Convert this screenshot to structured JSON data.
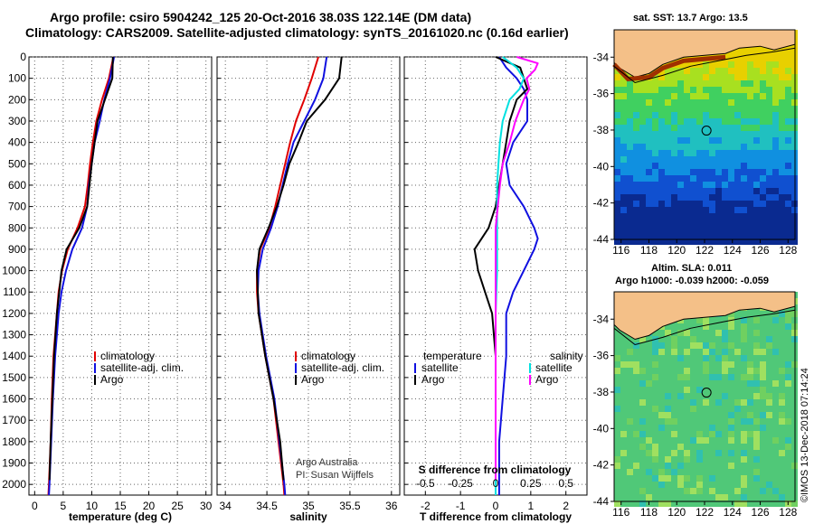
{
  "title_line1": "Argo profile: csiro 5904242_125 20-Oct-2016 38.03S 122.14E (DM data)",
  "title_line2": "Climatology: CARS2009. Satellite-adjusted climatology: synTS_20161020.nc (0.16d earlier)",
  "colors": {
    "climatology": "#e00000",
    "satellite": "#1010e0",
    "argo": "#000000",
    "argo_salinity": "#ff00ff",
    "satellite_salinity": "#00e0e0",
    "land": "#f4c088"
  },
  "chart_data": [
    {
      "type": "line",
      "xlabel": "temperature (deg C)",
      "ylabel": "",
      "xlim": [
        -1,
        31
      ],
      "ylim": [
        2050,
        0
      ],
      "xticks": [
        "0",
        "5",
        "10",
        "15",
        "20",
        "25",
        "30"
      ],
      "yticks": [
        "0",
        "100",
        "200",
        "300",
        "400",
        "500",
        "600",
        "700",
        "800",
        "900",
        "1000",
        "1100",
        "1200",
        "1300",
        "1400",
        "1500",
        "1600",
        "1700",
        "1800",
        "1900",
        "2000"
      ],
      "legend": [
        "climatology",
        "satellite-adj. clim.",
        "Argo"
      ],
      "series": [
        {
          "name": "climatology",
          "depth": [
            0,
            100,
            200,
            300,
            400,
            500,
            600,
            700,
            800,
            900,
            1000,
            1100,
            1200,
            1400,
            1600,
            1800,
            2000,
            2050
          ],
          "values": [
            13.8,
            13.0,
            11.8,
            10.8,
            10.2,
            9.7,
            9.3,
            8.8,
            7.5,
            5.8,
            4.8,
            4.2,
            3.9,
            3.3,
            3.0,
            2.8,
            2.5,
            2.4
          ]
        },
        {
          "name": "satellite-adj. clim.",
          "depth": [
            0,
            100,
            200,
            300,
            400,
            500,
            600,
            700,
            800,
            900,
            1000,
            1100,
            1200,
            1400,
            1600,
            1800,
            2000,
            2050
          ],
          "values": [
            13.9,
            13.2,
            12.2,
            11.4,
            10.5,
            10.0,
            9.5,
            9.2,
            8.3,
            6.6,
            5.5,
            4.7,
            4.2,
            3.6,
            3.2,
            2.9,
            2.6,
            2.5
          ]
        },
        {
          "name": "Argo",
          "depth": [
            0,
            100,
            200,
            300,
            400,
            500,
            600,
            700,
            800,
            900,
            1000,
            1100,
            1200,
            1400,
            1600,
            1800,
            1980
          ],
          "values": [
            13.7,
            13.6,
            12.3,
            11.0,
            10.5,
            10.0,
            9.6,
            9.2,
            7.8,
            5.6,
            4.7,
            4.3,
            3.9,
            3.4,
            3.1,
            2.8,
            2.6
          ]
        }
      ]
    },
    {
      "type": "line",
      "xlabel": "salinity",
      "xlim": [
        33.9,
        36.1
      ],
      "ylim": [
        2050,
        0
      ],
      "xticks": [
        "34",
        "34.5",
        "35",
        "35.5",
        "36"
      ],
      "legend": [
        "climatology",
        "satellite-adj. clim.",
        "Argo"
      ],
      "annotation": [
        "Argo Australia",
        "PI: Susan Wijffels"
      ],
      "series": [
        {
          "name": "climatology",
          "depth": [
            0,
            100,
            200,
            300,
            400,
            500,
            600,
            700,
            800,
            900,
            1000,
            1100,
            1200,
            1400,
            1600,
            1800,
            2000,
            2050
          ],
          "values": [
            35.12,
            35.04,
            34.95,
            34.85,
            34.78,
            34.72,
            34.66,
            34.6,
            34.53,
            34.42,
            34.38,
            34.38,
            34.4,
            34.48,
            34.58,
            34.64,
            34.7,
            34.71
          ]
        },
        {
          "name": "satellite-adj. clim.",
          "depth": [
            0,
            100,
            200,
            300,
            400,
            500,
            600,
            700,
            800,
            900,
            1000,
            1100,
            1200,
            1400,
            1600,
            1800,
            2000,
            2050
          ],
          "values": [
            35.22,
            35.18,
            35.08,
            34.95,
            34.82,
            34.75,
            34.69,
            34.63,
            34.55,
            34.45,
            34.4,
            34.39,
            34.41,
            34.49,
            34.59,
            34.65,
            34.71,
            34.72
          ]
        },
        {
          "name": "Argo",
          "depth": [
            0,
            100,
            200,
            300,
            400,
            500,
            600,
            700,
            800,
            900,
            1000,
            1100,
            1200,
            1400,
            1600,
            1800,
            1980
          ],
          "values": [
            35.4,
            35.37,
            35.2,
            34.98,
            34.88,
            34.77,
            34.7,
            34.62,
            34.52,
            34.41,
            34.38,
            34.39,
            34.4,
            34.48,
            34.58,
            34.66,
            34.7
          ]
        }
      ]
    },
    {
      "type": "line",
      "xlabel": "T difference from climatology",
      "xlabel_top": "S difference from climatology",
      "xlim": [
        -2.6,
        2.6
      ],
      "ylim": [
        2050,
        0
      ],
      "xticks": [
        "-2",
        "-1",
        "0",
        "1",
        "2"
      ],
      "xticks_top": [
        "-0.5",
        "-0.25",
        "0",
        "0.25",
        "0.5"
      ],
      "legend_left": [
        "temperature",
        "satellite",
        "Argo"
      ],
      "legend_right": [
        "salinity",
        "satellite",
        "Argo"
      ],
      "series": [
        {
          "name": "temperature satellite",
          "depth": [
            0,
            50,
            100,
            150,
            200,
            300,
            400,
            500,
            600,
            700,
            800,
            850,
            900,
            1000,
            1100,
            1200,
            1400,
            1600,
            1800,
            2000,
            2050
          ],
          "values": [
            0.1,
            0.3,
            0.6,
            0.8,
            0.9,
            0.9,
            0.5,
            0.3,
            0.4,
            0.8,
            1.1,
            1.2,
            1.1,
            0.8,
            0.5,
            0.3,
            0.3,
            0.2,
            0.1,
            0.1,
            0.1
          ]
        },
        {
          "name": "temperature Argo",
          "depth": [
            0,
            50,
            100,
            150,
            200,
            300,
            400,
            500,
            600,
            700,
            800,
            850,
            900,
            1000,
            1100,
            1200,
            1400,
            1600,
            1800,
            1980
          ],
          "values": [
            0.0,
            0.7,
            0.8,
            0.9,
            0.6,
            0.4,
            0.3,
            0.2,
            0.1,
            0.0,
            -0.2,
            -0.4,
            -0.6,
            -0.5,
            -0.3,
            -0.1,
            0.0,
            0.0,
            0.0,
            0.0
          ]
        },
        {
          "name": "salinity satellite",
          "depth": [
            0,
            50,
            100,
            150,
            200,
            300,
            400,
            500,
            600,
            800,
            1000,
            1200,
            1400,
            1600,
            1800,
            2000,
            2050
          ],
          "values": [
            0.05,
            0.15,
            0.2,
            0.17,
            0.1,
            0.05,
            0.03,
            0.02,
            0.01,
            0.01,
            0.01,
            0.0,
            0.0,
            0.0,
            0.0,
            0.0,
            0.0
          ]
        },
        {
          "name": "salinity Argo",
          "depth": [
            0,
            30,
            60,
            100,
            150,
            200,
            300,
            400,
            500,
            600,
            800,
            1000,
            1200,
            1400,
            1600,
            1800,
            1980
          ],
          "values": [
            0.15,
            0.3,
            0.28,
            0.22,
            0.24,
            0.2,
            0.14,
            0.1,
            0.05,
            0.03,
            0.0,
            0.0,
            0.0,
            0.0,
            0.0,
            0.0,
            0.0
          ]
        }
      ]
    }
  ],
  "map_top": {
    "title": "sat. SST: 13.7 Argo: 13.5",
    "xticks": [
      "116",
      "118",
      "120",
      "122",
      "124",
      "126",
      "128"
    ],
    "yticks": [
      "-34",
      "-36",
      "-38",
      "-40",
      "-42",
      "-44"
    ],
    "profile_lon": 122.14,
    "profile_lat": -38.03
  },
  "map_bottom": {
    "title_line1": "Altim. SLA: 0.011",
    "title_line2": "Argo h1000: -0.039 h2000: -0.059",
    "xticks": [
      "116",
      "118",
      "120",
      "122",
      "124",
      "126",
      "128"
    ],
    "yticks": [
      "-34",
      "-36",
      "-38",
      "-40",
      "-42",
      "-44"
    ],
    "profile_lon": 122.14,
    "profile_lat": -38.03
  },
  "watermark": "©IMOS 13-Dec-2018 07:14:24"
}
